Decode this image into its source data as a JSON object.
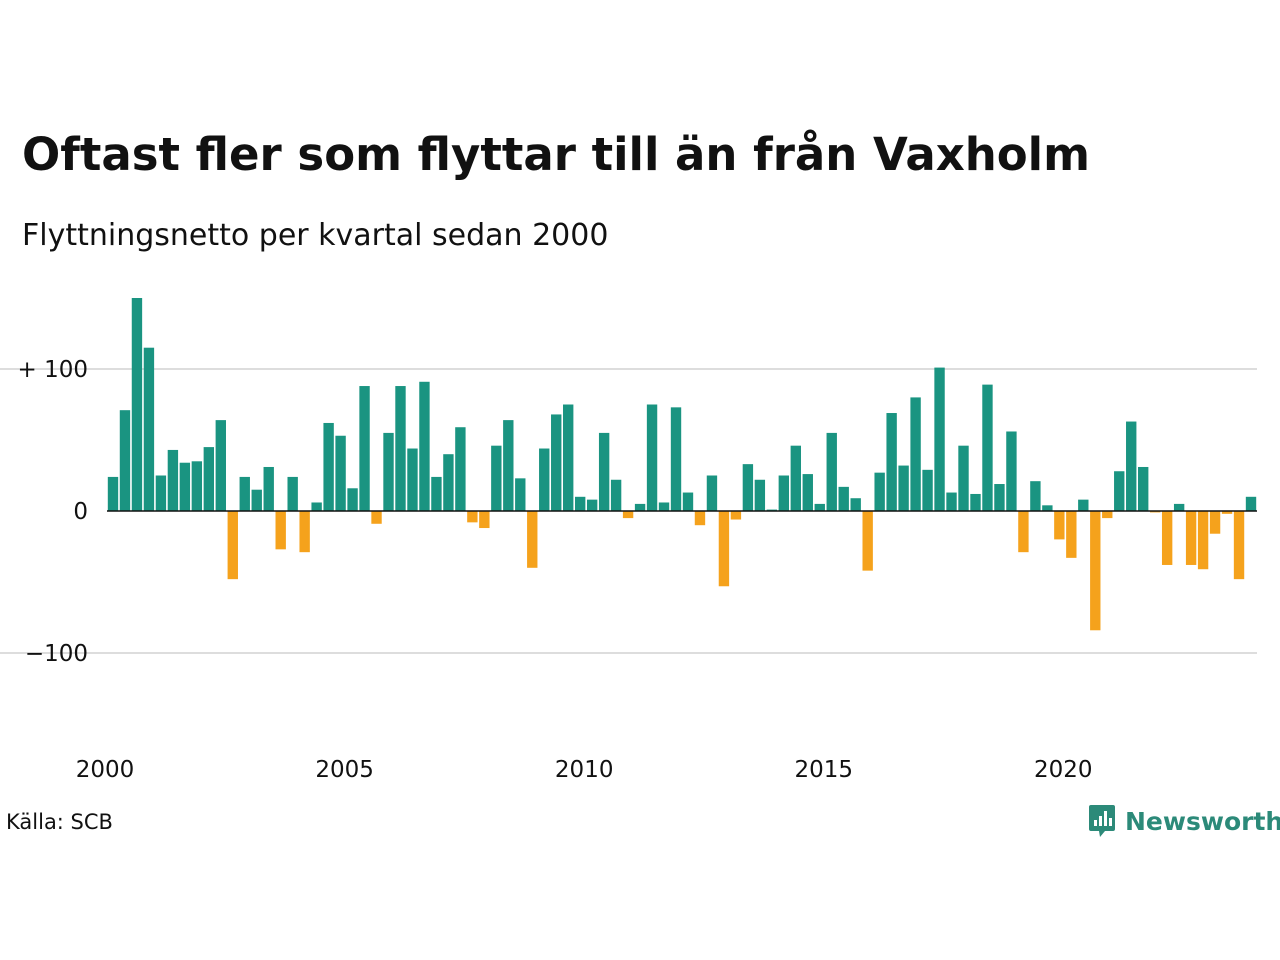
{
  "title": "Oftast fler som flyttar till än från Vaxholm",
  "subtitle": "Flyttningsnetto per kvartal sedan 2000",
  "source": "Källa: SCB",
  "brand": "Newsworthy",
  "colors": {
    "positive": "#1a9481",
    "negative": "#f5a21c",
    "grid": "#dddddd",
    "brand": "#2c8a79"
  },
  "chart_data": {
    "type": "bar",
    "title": "Oftast fler som flyttar till än från Vaxholm",
    "subtitle": "Flyttningsnetto per kvartal sedan 2000",
    "xlabel": "",
    "ylabel": "",
    "ylim": [
      -165,
      150
    ],
    "grid": true,
    "legend": "none",
    "yticks": [
      {
        "value": 100,
        "label": "+ 100"
      },
      {
        "value": 0,
        "label": "0"
      },
      {
        "value": -100,
        "label": "−100"
      }
    ],
    "xticks": [
      "2000",
      "2005",
      "2010",
      "2015",
      "2020"
    ],
    "start": "2000 Q1",
    "end": "2023 Q4",
    "values": [
      24,
      71,
      150,
      115,
      25,
      43,
      34,
      35,
      45,
      64,
      -48,
      24,
      15,
      31,
      -27,
      24,
      -29,
      6,
      62,
      53,
      16,
      88,
      -9,
      55,
      88,
      44,
      91,
      24,
      40,
      59,
      -8,
      -12,
      46,
      64,
      23,
      -40,
      44,
      68,
      75,
      10,
      8,
      55,
      22,
      -5,
      5,
      75,
      6,
      73,
      13,
      -10,
      25,
      -53,
      -6,
      33,
      22,
      1,
      25,
      46,
      26,
      5,
      55,
      17,
      9,
      -42,
      27,
      69,
      32,
      80,
      29,
      101,
      13,
      46,
      12,
      89,
      19,
      56,
      -29,
      21,
      4,
      -20,
      -33,
      8,
      -84,
      -5,
      28,
      63,
      31,
      -1,
      -38,
      5,
      -38,
      -41,
      -16,
      -2,
      -48,
      10
    ]
  }
}
